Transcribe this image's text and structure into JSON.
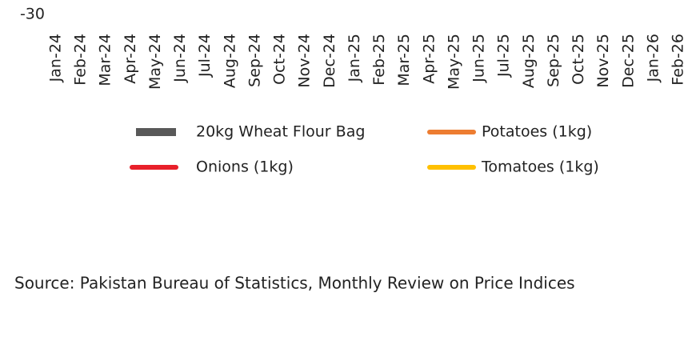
{
  "chart_data": {
    "type": "line",
    "categories": [
      "Jan-24",
      "Feb-24",
      "Mar-24",
      "Apr-24",
      "May-24",
      "Jun-24",
      "Jul-24",
      "Aug-24",
      "Sep-24",
      "Oct-24",
      "Nov-24",
      "Dec-24",
      "Jan-25",
      "Feb-25",
      "Mar-25",
      "Apr-25",
      "May-25",
      "Jun-25",
      "Jul-25",
      "Aug-25",
      "Sep-25",
      "Oct-25",
      "Nov-25",
      "Dec-25",
      "Jan-26",
      "Feb-26"
    ],
    "yticks": [
      -30
    ],
    "series": [
      {
        "name": "20kg Wheat Flour Bag",
        "color": "#595959",
        "kind": "bar"
      },
      {
        "name": "Potatoes (1kg)",
        "color": "#ed7d31"
      },
      {
        "name": "Onions (1kg)",
        "color": "#e8202a"
      },
      {
        "name": "Tomatoes (1kg)",
        "color": "#ffc000"
      }
    ],
    "source": "Source: Pakistan Bureau of Statistics, Monthly Review on Price Indices"
  }
}
